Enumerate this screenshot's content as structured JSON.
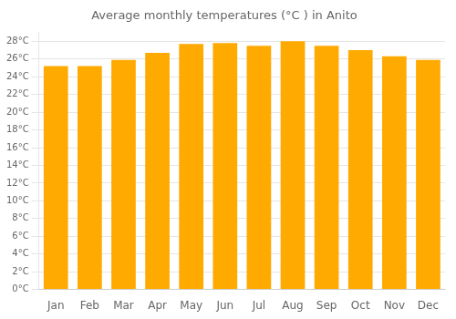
{
  "chart_data": {
    "type": "bar",
    "title": "Average monthly temperatures (°C ) in Anito",
    "categories": [
      "Jan",
      "Feb",
      "Mar",
      "Apr",
      "May",
      "Jun",
      "Jul",
      "Aug",
      "Sep",
      "Oct",
      "Nov",
      "Dec"
    ],
    "values": [
      25.2,
      25.2,
      25.9,
      26.7,
      27.7,
      27.8,
      27.5,
      28.0,
      27.5,
      27.0,
      26.3,
      25.9
    ],
    "color": "#FFAA00",
    "ylim": [
      0,
      29
    ],
    "yticks": [
      {
        "value": 0,
        "label": "0°C"
      },
      {
        "value": 2,
        "label": "2°C"
      },
      {
        "value": 4,
        "label": "4°C"
      },
      {
        "value": 6,
        "label": "6°C"
      },
      {
        "value": 8,
        "label": "8°C"
      },
      {
        "value": 10,
        "label": "10°C"
      },
      {
        "value": 12,
        "label": "12°C"
      },
      {
        "value": 14,
        "label": "14°C"
      },
      {
        "value": 16,
        "label": "16°C"
      },
      {
        "value": 18,
        "label": "18°C"
      },
      {
        "value": 20,
        "label": "20°C"
      },
      {
        "value": 22,
        "label": "22°C"
      },
      {
        "value": 24,
        "label": "24°C"
      },
      {
        "value": 26,
        "label": "26°C"
      },
      {
        "value": 28,
        "label": "28°C"
      }
    ],
    "grid": true
  }
}
